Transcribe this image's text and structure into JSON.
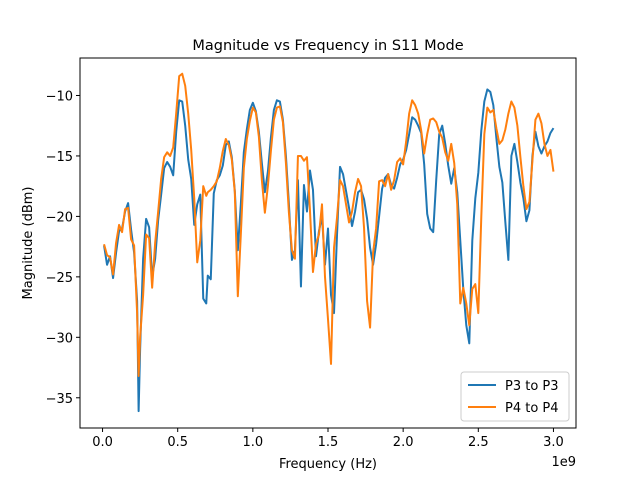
{
  "chart_data": {
    "type": "line",
    "title": "Magnitude vs Frequency in S11 Mode",
    "xlabel": "Frequency (Hz)",
    "ylabel": "Magnitude (dBm)",
    "x_offset_label": "1e9",
    "xlim": [
      -0.15,
      3.15
    ],
    "ylim": [
      -37.5,
      -6.9
    ],
    "x_ticks": [
      0.0,
      0.5,
      1.0,
      1.5,
      2.0,
      2.5,
      3.0
    ],
    "x_tick_labels": [
      "0.0",
      "0.5",
      "1.0",
      "1.5",
      "2.0",
      "2.5",
      "3.0"
    ],
    "y_ticks": [
      -35,
      -30,
      -25,
      -20,
      -15,
      -10
    ],
    "y_tick_labels": [
      "−35",
      "−30",
      "−25",
      "−20",
      "−15",
      "−10"
    ],
    "grid": false,
    "legend_position": "lower-right",
    "series": [
      {
        "name": "P3 to P3",
        "color": "#1f77b4",
        "points": [
          [
            0.01,
            -22.4
          ],
          [
            0.03,
            -24.0
          ],
          [
            0.05,
            -23.3
          ],
          [
            0.07,
            -25.1
          ],
          [
            0.09,
            -23.0
          ],
          [
            0.11,
            -21.2
          ],
          [
            0.13,
            -21.0
          ],
          [
            0.15,
            -19.6
          ],
          [
            0.17,
            -18.9
          ],
          [
            0.19,
            -21.1
          ],
          [
            0.21,
            -23.0
          ],
          [
            0.23,
            -27.0
          ],
          [
            0.24,
            -36.1
          ],
          [
            0.25,
            -31.0
          ],
          [
            0.27,
            -23.5
          ],
          [
            0.29,
            -20.2
          ],
          [
            0.31,
            -20.9
          ],
          [
            0.33,
            -25.0
          ],
          [
            0.35,
            -23.5
          ],
          [
            0.37,
            -20.3
          ],
          [
            0.39,
            -18.2
          ],
          [
            0.41,
            -16.0
          ],
          [
            0.43,
            -15.5
          ],
          [
            0.45,
            -15.9
          ],
          [
            0.47,
            -16.6
          ],
          [
            0.49,
            -13.0
          ],
          [
            0.51,
            -10.4
          ],
          [
            0.53,
            -10.5
          ],
          [
            0.55,
            -12.5
          ],
          [
            0.57,
            -15.3
          ],
          [
            0.59,
            -16.9
          ],
          [
            0.61,
            -20.7
          ],
          [
            0.63,
            -19.0
          ],
          [
            0.65,
            -18.2
          ],
          [
            0.67,
            -26.8
          ],
          [
            0.69,
            -27.2
          ],
          [
            0.7,
            -24.9
          ],
          [
            0.72,
            -25.2
          ],
          [
            0.74,
            -18.1
          ],
          [
            0.76,
            -17.0
          ],
          [
            0.78,
            -16.6
          ],
          [
            0.8,
            -15.8
          ],
          [
            0.82,
            -14.1
          ],
          [
            0.84,
            -13.8
          ],
          [
            0.86,
            -15.1
          ],
          [
            0.88,
            -17.9
          ],
          [
            0.9,
            -22.8
          ],
          [
            0.92,
            -19.0
          ],
          [
            0.94,
            -14.7
          ],
          [
            0.96,
            -12.8
          ],
          [
            0.98,
            -11.2
          ],
          [
            1.0,
            -10.6
          ],
          [
            1.02,
            -11.3
          ],
          [
            1.04,
            -13.0
          ],
          [
            1.06,
            -15.6
          ],
          [
            1.08,
            -18.0
          ],
          [
            1.1,
            -16.3
          ],
          [
            1.12,
            -13.5
          ],
          [
            1.14,
            -11.2
          ],
          [
            1.16,
            -10.4
          ],
          [
            1.18,
            -10.5
          ],
          [
            1.2,
            -12.0
          ],
          [
            1.22,
            -15.0
          ],
          [
            1.24,
            -19.0
          ],
          [
            1.26,
            -23.6
          ],
          [
            1.28,
            -22.8
          ],
          [
            1.3,
            -17.0
          ],
          [
            1.32,
            -25.8
          ],
          [
            1.34,
            -17.4
          ],
          [
            1.36,
            -19.6
          ],
          [
            1.38,
            -16.2
          ],
          [
            1.4,
            -17.8
          ],
          [
            1.42,
            -23.3
          ],
          [
            1.44,
            -21.2
          ],
          [
            1.46,
            -20.0
          ],
          [
            1.48,
            -24.0
          ],
          [
            1.5,
            -21.0
          ],
          [
            1.52,
            -26.5
          ],
          [
            1.54,
            -28.0
          ],
          [
            1.56,
            -21.5
          ],
          [
            1.58,
            -15.9
          ],
          [
            1.6,
            -16.5
          ],
          [
            1.62,
            -17.9
          ],
          [
            1.64,
            -19.3
          ],
          [
            1.66,
            -20.8
          ],
          [
            1.68,
            -19.6
          ],
          [
            1.7,
            -18.0
          ],
          [
            1.72,
            -17.8
          ],
          [
            1.74,
            -18.6
          ],
          [
            1.76,
            -20.2
          ],
          [
            1.78,
            -22.6
          ],
          [
            1.8,
            -24.0
          ],
          [
            1.82,
            -22.3
          ],
          [
            1.84,
            -20.0
          ],
          [
            1.86,
            -17.7
          ],
          [
            1.88,
            -16.8
          ],
          [
            1.9,
            -16.5
          ],
          [
            1.92,
            -17.4
          ],
          [
            1.94,
            -17.7
          ],
          [
            1.96,
            -16.8
          ],
          [
            1.98,
            -15.7
          ],
          [
            2.0,
            -15.3
          ],
          [
            2.02,
            -14.5
          ],
          [
            2.04,
            -13.2
          ],
          [
            2.06,
            -11.8
          ],
          [
            2.08,
            -12.0
          ],
          [
            2.1,
            -12.5
          ],
          [
            2.12,
            -13.1
          ],
          [
            2.14,
            -15.7
          ],
          [
            2.16,
            -19.8
          ],
          [
            2.18,
            -21.0
          ],
          [
            2.2,
            -21.3
          ],
          [
            2.22,
            -17.0
          ],
          [
            2.24,
            -13.2
          ],
          [
            2.26,
            -12.5
          ],
          [
            2.28,
            -14.0
          ],
          [
            2.3,
            -15.8
          ],
          [
            2.32,
            -17.3
          ],
          [
            2.34,
            -16.0
          ],
          [
            2.36,
            -18.0
          ],
          [
            2.38,
            -22.0
          ],
          [
            2.4,
            -26.0
          ],
          [
            2.42,
            -29.0
          ],
          [
            2.44,
            -30.5
          ],
          [
            2.46,
            -22.0
          ],
          [
            2.48,
            -18.5
          ],
          [
            2.5,
            -16.4
          ],
          [
            2.52,
            -12.9
          ],
          [
            2.54,
            -10.5
          ],
          [
            2.56,
            -9.5
          ],
          [
            2.58,
            -9.7
          ],
          [
            2.6,
            -10.8
          ],
          [
            2.62,
            -13.5
          ],
          [
            2.64,
            -15.9
          ],
          [
            2.66,
            -17.2
          ],
          [
            2.68,
            -20.5
          ],
          [
            2.7,
            -23.6
          ],
          [
            2.72,
            -15.0
          ],
          [
            2.74,
            -14.0
          ],
          [
            2.76,
            -15.5
          ],
          [
            2.78,
            -17.2
          ],
          [
            2.8,
            -18.5
          ],
          [
            2.82,
            -20.4
          ],
          [
            2.84,
            -19.5
          ],
          [
            2.86,
            -15.0
          ],
          [
            2.88,
            -13.0
          ],
          [
            2.9,
            -14.2
          ],
          [
            2.92,
            -14.8
          ],
          [
            2.94,
            -14.2
          ],
          [
            2.96,
            -13.8
          ],
          [
            2.98,
            -13.1
          ],
          [
            3.0,
            -12.7
          ]
        ]
      },
      {
        "name": "P4 to P4",
        "color": "#ff7f0e",
        "points": [
          [
            0.01,
            -22.3
          ],
          [
            0.03,
            -23.2
          ],
          [
            0.05,
            -23.4
          ],
          [
            0.07,
            -24.8
          ],
          [
            0.09,
            -22.2
          ],
          [
            0.11,
            -20.7
          ],
          [
            0.13,
            -21.3
          ],
          [
            0.15,
            -19.4
          ],
          [
            0.17,
            -19.3
          ],
          [
            0.19,
            -21.9
          ],
          [
            0.21,
            -22.4
          ],
          [
            0.23,
            -28.0
          ],
          [
            0.24,
            -33.2
          ],
          [
            0.25,
            -30.0
          ],
          [
            0.27,
            -26.5
          ],
          [
            0.29,
            -21.5
          ],
          [
            0.31,
            -21.8
          ],
          [
            0.33,
            -25.9
          ],
          [
            0.35,
            -22.2
          ],
          [
            0.37,
            -19.6
          ],
          [
            0.39,
            -16.9
          ],
          [
            0.41,
            -15.1
          ],
          [
            0.43,
            -14.7
          ],
          [
            0.45,
            -15.0
          ],
          [
            0.47,
            -14.3
          ],
          [
            0.49,
            -11.5
          ],
          [
            0.51,
            -8.4
          ],
          [
            0.53,
            -8.2
          ],
          [
            0.55,
            -9.2
          ],
          [
            0.57,
            -11.5
          ],
          [
            0.59,
            -14.5
          ],
          [
            0.61,
            -18.5
          ],
          [
            0.63,
            -23.8
          ],
          [
            0.65,
            -22.0
          ],
          [
            0.67,
            -17.5
          ],
          [
            0.69,
            -18.3
          ],
          [
            0.7,
            -18.0
          ],
          [
            0.72,
            -17.8
          ],
          [
            0.74,
            -17.5
          ],
          [
            0.76,
            -17.1
          ],
          [
            0.78,
            -16.0
          ],
          [
            0.8,
            -14.6
          ],
          [
            0.82,
            -13.6
          ],
          [
            0.84,
            -14.1
          ],
          [
            0.86,
            -15.3
          ],
          [
            0.88,
            -18.0
          ],
          [
            0.9,
            -26.6
          ],
          [
            0.92,
            -21.5
          ],
          [
            0.94,
            -16.0
          ],
          [
            0.96,
            -13.6
          ],
          [
            0.98,
            -12.1
          ],
          [
            1.0,
            -11.0
          ],
          [
            1.02,
            -11.4
          ],
          [
            1.04,
            -13.4
          ],
          [
            1.06,
            -17.0
          ],
          [
            1.08,
            -19.7
          ],
          [
            1.1,
            -17.5
          ],
          [
            1.12,
            -14.6
          ],
          [
            1.14,
            -12.0
          ],
          [
            1.16,
            -11.0
          ],
          [
            1.18,
            -10.9
          ],
          [
            1.2,
            -12.2
          ],
          [
            1.22,
            -15.6
          ],
          [
            1.24,
            -19.7
          ],
          [
            1.26,
            -22.8
          ],
          [
            1.28,
            -23.5
          ],
          [
            1.3,
            -15.0
          ],
          [
            1.32,
            -15.0
          ],
          [
            1.34,
            -15.4
          ],
          [
            1.36,
            -15.1
          ],
          [
            1.38,
            -19.5
          ],
          [
            1.4,
            -24.6
          ],
          [
            1.42,
            -22.3
          ],
          [
            1.44,
            -21.5
          ],
          [
            1.46,
            -19.0
          ],
          [
            1.48,
            -25.0
          ],
          [
            1.5,
            -28.5
          ],
          [
            1.52,
            -32.2
          ],
          [
            1.54,
            -22.6
          ],
          [
            1.56,
            -20.1
          ],
          [
            1.58,
            -17.0
          ],
          [
            1.6,
            -17.5
          ],
          [
            1.62,
            -19.0
          ],
          [
            1.64,
            -20.5
          ],
          [
            1.66,
            -19.6
          ],
          [
            1.68,
            -18.0
          ],
          [
            1.7,
            -16.9
          ],
          [
            1.72,
            -17.5
          ],
          [
            1.74,
            -21.0
          ],
          [
            1.76,
            -27.0
          ],
          [
            1.78,
            -29.2
          ],
          [
            1.8,
            -23.0
          ],
          [
            1.82,
            -21.0
          ],
          [
            1.84,
            -17.1
          ],
          [
            1.86,
            -17.0
          ],
          [
            1.88,
            -17.5
          ],
          [
            1.9,
            -16.5
          ],
          [
            1.92,
            -17.8
          ],
          [
            1.94,
            -17.0
          ],
          [
            1.96,
            -15.5
          ],
          [
            1.98,
            -15.2
          ],
          [
            2.0,
            -15.7
          ],
          [
            2.02,
            -13.8
          ],
          [
            2.04,
            -11.5
          ],
          [
            2.06,
            -10.4
          ],
          [
            2.08,
            -10.8
          ],
          [
            2.1,
            -11.5
          ],
          [
            2.12,
            -12.9
          ],
          [
            2.14,
            -14.8
          ],
          [
            2.16,
            -13.2
          ],
          [
            2.18,
            -12.0
          ],
          [
            2.2,
            -11.9
          ],
          [
            2.22,
            -12.2
          ],
          [
            2.24,
            -13.0
          ],
          [
            2.26,
            -13.5
          ],
          [
            2.28,
            -14.7
          ],
          [
            2.3,
            -15.4
          ],
          [
            2.32,
            -14.0
          ],
          [
            2.34,
            -15.6
          ],
          [
            2.36,
            -19.0
          ],
          [
            2.38,
            -27.2
          ],
          [
            2.4,
            -25.9
          ],
          [
            2.42,
            -27.2
          ],
          [
            2.44,
            -29.0
          ],
          [
            2.46,
            -26.0
          ],
          [
            2.48,
            -25.6
          ],
          [
            2.5,
            -28.0
          ],
          [
            2.52,
            -20.0
          ],
          [
            2.54,
            -13.2
          ],
          [
            2.56,
            -11.0
          ],
          [
            2.58,
            -11.4
          ],
          [
            2.6,
            -11.2
          ],
          [
            2.62,
            -12.7
          ],
          [
            2.64,
            -14.0
          ],
          [
            2.66,
            -13.7
          ],
          [
            2.68,
            -12.8
          ],
          [
            2.7,
            -11.5
          ],
          [
            2.72,
            -10.5
          ],
          [
            2.74,
            -11.0
          ],
          [
            2.76,
            -12.5
          ],
          [
            2.78,
            -15.1
          ],
          [
            2.8,
            -17.5
          ],
          [
            2.82,
            -19.4
          ],
          [
            2.84,
            -18.8
          ],
          [
            2.86,
            -15.4
          ],
          [
            2.88,
            -12.0
          ],
          [
            2.9,
            -11.5
          ],
          [
            2.92,
            -12.3
          ],
          [
            2.94,
            -14.0
          ],
          [
            2.96,
            -15.0
          ],
          [
            2.98,
            -14.5
          ],
          [
            3.0,
            -16.3
          ]
        ]
      }
    ]
  }
}
